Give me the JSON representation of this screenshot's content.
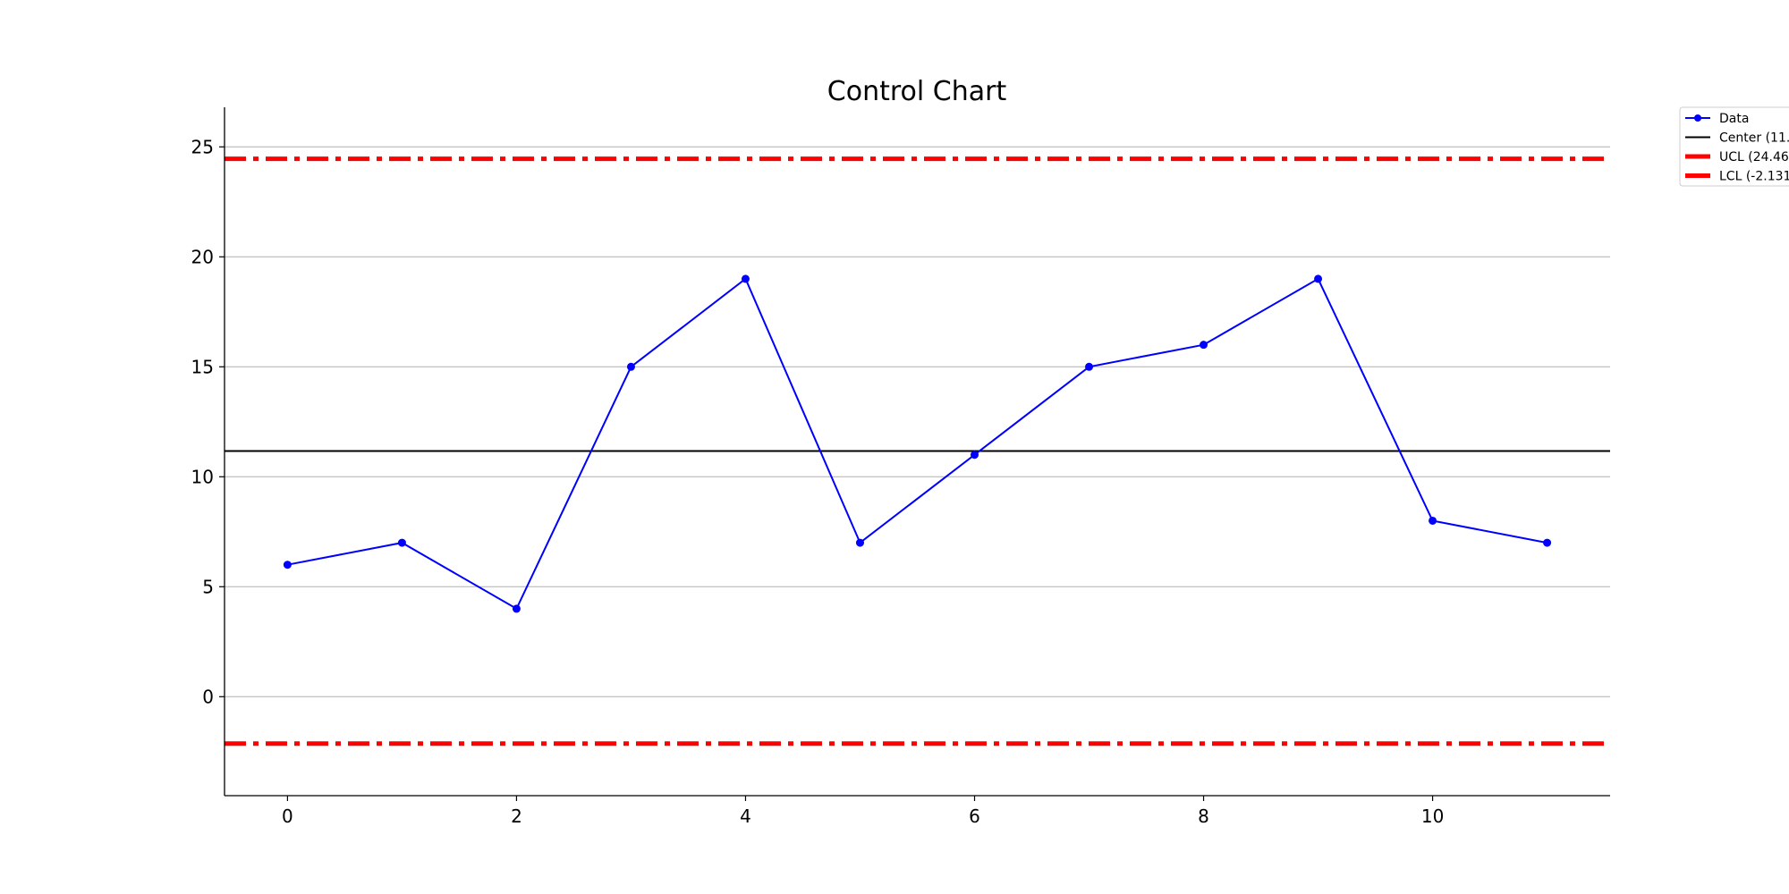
{
  "chart_data": {
    "type": "line",
    "title": "Control Chart",
    "xlabel": "",
    "ylabel": "",
    "xlim": [
      -0.55,
      11.55
    ],
    "ylim": [
      -4.5,
      26.8
    ],
    "x_ticks": [
      0,
      2,
      4,
      6,
      8,
      10
    ],
    "y_ticks": [
      0,
      5,
      10,
      15,
      20,
      25
    ],
    "grid": "y",
    "series": [
      {
        "name": "Data",
        "color": "#0000ff",
        "marker": "circle",
        "x": [
          0,
          1,
          2,
          3,
          4,
          5,
          6,
          7,
          8,
          9,
          10,
          11
        ],
        "values": [
          6,
          7,
          4,
          15,
          19,
          7,
          11,
          15,
          16,
          19,
          8,
          7
        ]
      }
    ],
    "reference_lines": [
      {
        "name": "Center (11.",
        "value": 11.17,
        "color": "#000000",
        "style": "solid"
      },
      {
        "name": "UCL (24.46",
        "value": 24.46,
        "color": "#ff0000",
        "style": "dashdot"
      },
      {
        "name": "LCL (-2.131",
        "value": -2.131,
        "color": "#ff0000",
        "style": "dashdot"
      }
    ],
    "legend": {
      "placement": "outside-top-right",
      "entries": [
        "Data",
        "Center (11.",
        "UCL (24.46",
        "LCL (-2.131"
      ]
    }
  }
}
